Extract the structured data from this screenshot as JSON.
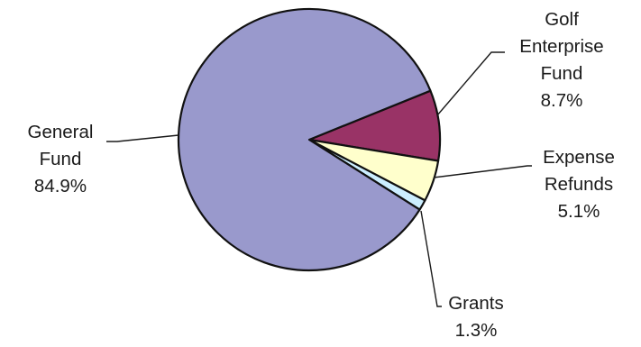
{
  "chart_data": {
    "type": "pie",
    "title": "",
    "start_angle_deg": -22,
    "direction": "clockwise",
    "slices": [
      {
        "label_lines": [
          "Golf",
          "Enterprise",
          "Fund"
        ],
        "value_label": "8.7%",
        "value": 8.7,
        "color": "#993366"
      },
      {
        "label_lines": [
          "Expense",
          "Refunds"
        ],
        "value_label": "5.1%",
        "value": 5.1,
        "color": "#ffffcc"
      },
      {
        "label_lines": [
          "Grants"
        ],
        "value_label": "1.3%",
        "value": 1.3,
        "color": "#cceeff"
      },
      {
        "label_lines": [
          "General",
          "Fund"
        ],
        "value_label": "84.9%",
        "value": 84.9,
        "color": "#9999cc"
      }
    ]
  }
}
